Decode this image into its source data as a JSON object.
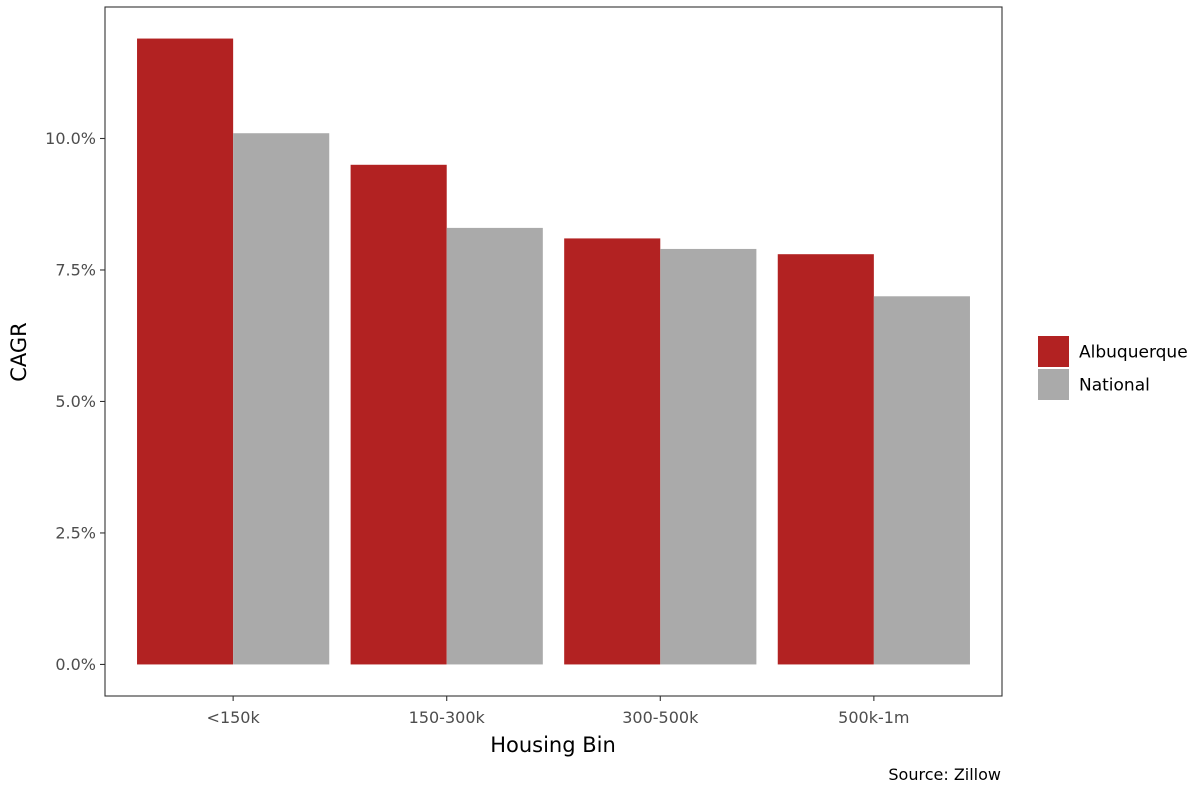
{
  "chart_data": {
    "type": "bar",
    "title": "",
    "xlabel": "Housing Bin",
    "ylabel": "CAGR",
    "caption": "Source: Zillow",
    "categories": [
      "<150k",
      "150-300k",
      "300-500k",
      "500k-1m"
    ],
    "series": [
      {
        "name": "Albuquerque",
        "color": "#B22222",
        "values": [
          11.9,
          9.5,
          8.1,
          7.8
        ]
      },
      {
        "name": "National",
        "color": "#AAAAAA",
        "values": [
          10.1,
          8.3,
          7.9,
          7.0
        ]
      }
    ],
    "ylim": [
      -0.6,
      12.5
    ],
    "yticks": [
      0,
      2.5,
      5,
      7.5,
      10
    ],
    "ytick_labels": [
      "0.0%",
      "2.5%",
      "5.0%",
      "7.5%",
      "10.0%"
    ],
    "grid": false,
    "legend_position": "right"
  }
}
